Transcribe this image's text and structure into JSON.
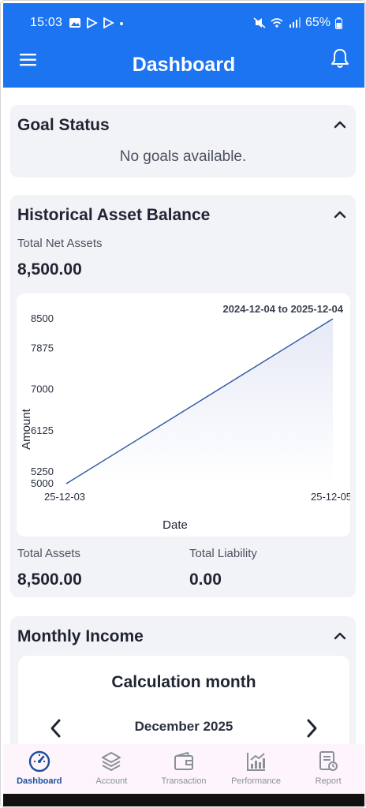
{
  "status_bar": {
    "time": "15:03",
    "battery": "65%"
  },
  "app_bar": {
    "title": "Dashboard"
  },
  "goal_status": {
    "title": "Goal Status",
    "empty_text": "No goals available."
  },
  "historical": {
    "title": "Historical Asset Balance",
    "total_net_assets_label": "Total Net Assets",
    "total_net_assets_value": "8,500.00",
    "total_assets_label": "Total Assets",
    "total_assets_value": "8,500.00",
    "total_liability_label": "Total Liability",
    "total_liability_value": "0.00"
  },
  "chart_data": {
    "type": "area",
    "date_range": "2024-12-04 to 2025-12-04",
    "xlabel": "Date",
    "ylabel": "Amount",
    "x_ticks": [
      "25-12-03",
      "25-12-05"
    ],
    "y_ticks": [
      "5000",
      "5250",
      "6125",
      "7000",
      "7875",
      "8500"
    ],
    "ylim": [
      5000,
      8500
    ],
    "series": [
      {
        "x": [
          "25-12-03",
          "25-12-05"
        ],
        "values": [
          5000,
          8500
        ]
      }
    ],
    "line_color": "#2f58a3"
  },
  "monthly_income": {
    "title": "Monthly Income",
    "calc_title": "Calculation month",
    "month": "December 2025"
  },
  "bottom_nav": {
    "items": [
      {
        "label": "Dashboard",
        "icon": "speedometer-icon",
        "active": true
      },
      {
        "label": "Account",
        "icon": "layers-icon",
        "active": false
      },
      {
        "label": "Transaction",
        "icon": "wallet-icon",
        "active": false
      },
      {
        "label": "Performance",
        "icon": "chart-icon",
        "active": false
      },
      {
        "label": "Report",
        "icon": "report-icon",
        "active": false
      }
    ]
  },
  "colors": {
    "accent": "#1d74f0",
    "card": "#f2f3f6",
    "nav_active": "#1d4f9a"
  }
}
